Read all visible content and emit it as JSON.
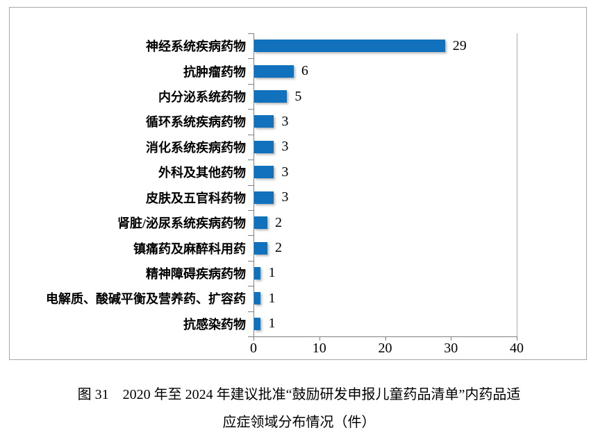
{
  "chart_data": {
    "type": "bar",
    "orientation": "horizontal",
    "title": "",
    "xlabel": "",
    "ylabel": "",
    "grid": false,
    "legend_position": "none",
    "categories": [
      "神经系统疾病药物",
      "抗肿瘤药物",
      "内分泌系统药物",
      "循环系统疾病药物",
      "消化系统疾病药物",
      "外科及其他药物",
      "皮肤及五官科药物",
      "肾脏/泌尿系统疾病药物",
      "镇痛药及麻醉科用药",
      "精神障碍疾病药物",
      "电解质、酸碱平衡及营养药、扩容药",
      "抗感染药物"
    ],
    "values": [
      29,
      6,
      5,
      3,
      3,
      3,
      3,
      2,
      2,
      1,
      1,
      1
    ],
    "x_ticks": [
      0,
      10,
      20,
      30,
      40
    ],
    "xlim": [
      0,
      40
    ],
    "bar_color": "#1171bd",
    "axis_color": "#7f7f7f",
    "plot_right_border_color": "#ababab",
    "frame_border_color": "#a6a6a6",
    "label_color": "#000000"
  },
  "caption": {
    "line1": "图 31　2020 年至 2024 年建议批准“鼓励研发申报儿童药品清单”内药品适",
    "line2": "应症领域分布情况（件）"
  }
}
